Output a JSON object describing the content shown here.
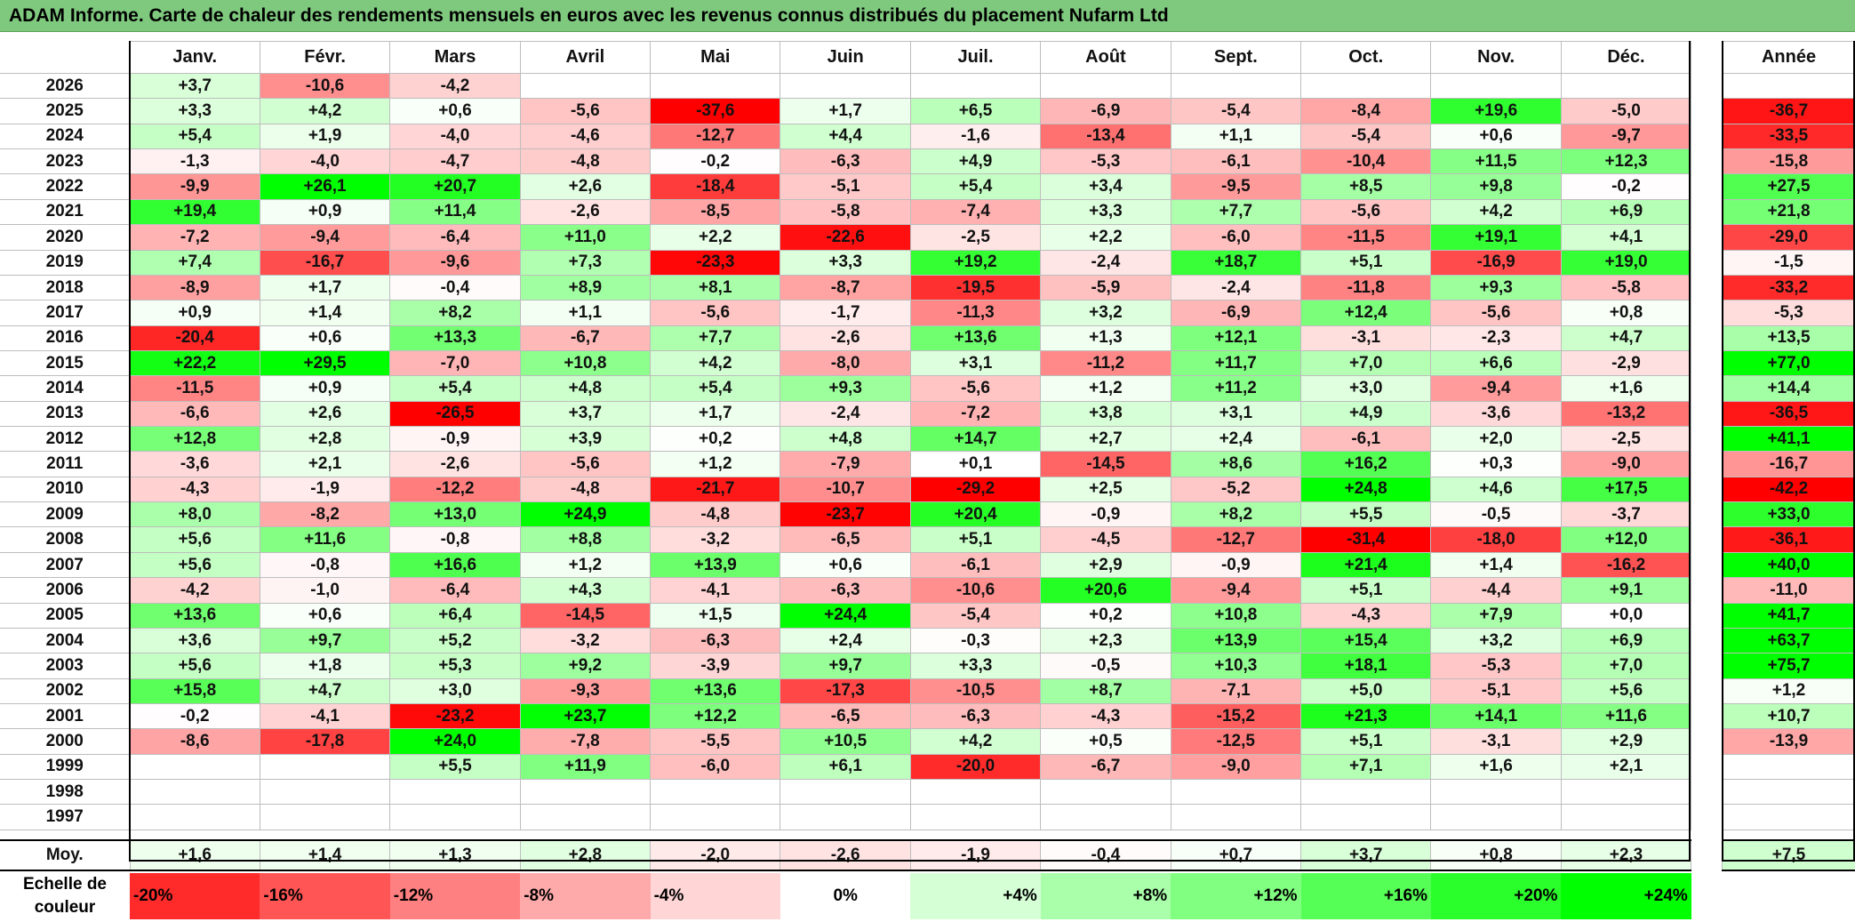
{
  "title": "ADAM Informe. Carte de chaleur des rendements mensuels en euros avec les revenus connus distribués du placement Nufarm Ltd",
  "colors": {
    "neg_max": "#ff0000",
    "zero": "#ffffff",
    "pos_max": "#00ff00",
    "title_bg": "#7fc97f"
  },
  "chart_data": {
    "type": "heatmap",
    "title": "ADAM Informe. Carte de chaleur des rendements mensuels en euros avec les revenus connus distribués du placement Nufarm Ltd",
    "columns": [
      "Janv.",
      "Févr.",
      "Mars",
      "Avril",
      "Mai",
      "Juin",
      "Juil.",
      "Août",
      "Sept.",
      "Oct.",
      "Nov.",
      "Déc."
    ],
    "year_header": "Année",
    "rows": [
      {
        "year": "2026",
        "values": [
          "+3,7",
          "-10,6",
          "-4,2",
          "",
          "",
          "",
          "",
          "",
          "",
          "",
          "",
          ""
        ],
        "annual": ""
      },
      {
        "year": "2025",
        "values": [
          "+3,3",
          "+4,2",
          "+0,6",
          "-5,6",
          "-37,6",
          "+1,7",
          "+6,5",
          "-6,9",
          "-5,4",
          "-8,4",
          "+19,6",
          "-5,0"
        ],
        "annual": "-36,7"
      },
      {
        "year": "2024",
        "values": [
          "+5,4",
          "+1,9",
          "-4,0",
          "-4,6",
          "-12,7",
          "+4,4",
          "-1,6",
          "-13,4",
          "+1,1",
          "-5,4",
          "+0,6",
          "-9,7"
        ],
        "annual": "-33,5"
      },
      {
        "year": "2023",
        "values": [
          "-1,3",
          "-4,0",
          "-4,7",
          "-4,8",
          "-0,2",
          "-6,3",
          "+4,9",
          "-5,3",
          "-6,1",
          "-10,4",
          "+11,5",
          "+12,3"
        ],
        "annual": "-15,8"
      },
      {
        "year": "2022",
        "values": [
          "-9,9",
          "+26,1",
          "+20,7",
          "+2,6",
          "-18,4",
          "-5,1",
          "+5,4",
          "+3,4",
          "-9,5",
          "+8,5",
          "+9,8",
          "-0,2"
        ],
        "annual": "+27,5"
      },
      {
        "year": "2021",
        "values": [
          "+19,4",
          "+0,9",
          "+11,4",
          "-2,6",
          "-8,5",
          "-5,8",
          "-7,4",
          "+3,3",
          "+7,7",
          "-5,6",
          "+4,2",
          "+6,9"
        ],
        "annual": "+21,8"
      },
      {
        "year": "2020",
        "values": [
          "-7,2",
          "-9,4",
          "-6,4",
          "+11,0",
          "+2,2",
          "-22,6",
          "-2,5",
          "+2,2",
          "-6,0",
          "-11,5",
          "+19,1",
          "+4,1"
        ],
        "annual": "-29,0"
      },
      {
        "year": "2019",
        "values": [
          "+7,4",
          "-16,7",
          "-9,6",
          "+7,3",
          "-23,3",
          "+3,3",
          "+19,2",
          "-2,4",
          "+18,7",
          "+5,1",
          "-16,9",
          "+19,0"
        ],
        "annual": "-1,5"
      },
      {
        "year": "2018",
        "values": [
          "-8,9",
          "+1,7",
          "-0,4",
          "+8,9",
          "+8,1",
          "-8,7",
          "-19,5",
          "-5,9",
          "-2,4",
          "-11,8",
          "+9,3",
          "-5,8"
        ],
        "annual": "-33,2"
      },
      {
        "year": "2017",
        "values": [
          "+0,9",
          "+1,4",
          "+8,2",
          "+1,1",
          "-5,6",
          "-1,7",
          "-11,3",
          "+3,2",
          "-6,9",
          "+12,4",
          "-5,6",
          "+0,8"
        ],
        "annual": "-5,3"
      },
      {
        "year": "2016",
        "values": [
          "-20,4",
          "+0,6",
          "+13,3",
          "-6,7",
          "+7,7",
          "-2,6",
          "+13,6",
          "+1,3",
          "+12,1",
          "-3,1",
          "-2,3",
          "+4,7"
        ],
        "annual": "+13,5"
      },
      {
        "year": "2015",
        "values": [
          "+22,2",
          "+29,5",
          "-7,0",
          "+10,8",
          "+4,2",
          "-8,0",
          "+3,1",
          "-11,2",
          "+11,7",
          "+7,0",
          "+6,6",
          "-2,9"
        ],
        "annual": "+77,0"
      },
      {
        "year": "2014",
        "values": [
          "-11,5",
          "+0,9",
          "+5,4",
          "+4,8",
          "+5,4",
          "+9,3",
          "-5,6",
          "+1,2",
          "+11,2",
          "+3,0",
          "-9,4",
          "+1,6"
        ],
        "annual": "+14,4"
      },
      {
        "year": "2013",
        "values": [
          "-6,6",
          "+2,6",
          "-26,5",
          "+3,7",
          "+1,7",
          "-2,4",
          "-7,2",
          "+3,8",
          "+3,1",
          "+4,9",
          "-3,6",
          "-13,2"
        ],
        "annual": "-36,5"
      },
      {
        "year": "2012",
        "values": [
          "+12,8",
          "+2,8",
          "-0,9",
          "+3,9",
          "+0,2",
          "+4,8",
          "+14,7",
          "+2,7",
          "+2,4",
          "-6,1",
          "+2,0",
          "-2,5"
        ],
        "annual": "+41,1"
      },
      {
        "year": "2011",
        "values": [
          "-3,6",
          "+2,1",
          "-2,6",
          "-5,6",
          "+1,2",
          "-7,9",
          "+0,1",
          "-14,5",
          "+8,6",
          "+16,2",
          "+0,3",
          "-9,0"
        ],
        "annual": "-16,7"
      },
      {
        "year": "2010",
        "values": [
          "-4,3",
          "-1,9",
          "-12,2",
          "-4,8",
          "-21,7",
          "-10,7",
          "-29,2",
          "+2,5",
          "-5,2",
          "+24,8",
          "+4,6",
          "+17,5"
        ],
        "annual": "-42,2"
      },
      {
        "year": "2009",
        "values": [
          "+8,0",
          "-8,2",
          "+13,0",
          "+24,9",
          "-4,8",
          "-23,7",
          "+20,4",
          "-0,9",
          "+8,2",
          "+5,5",
          "-0,5",
          "-3,7"
        ],
        "annual": "+33,0"
      },
      {
        "year": "2008",
        "values": [
          "+5,6",
          "+11,6",
          "-0,8",
          "+8,8",
          "-3,2",
          "-6,5",
          "+5,1",
          "-4,5",
          "-12,7",
          "-31,4",
          "-18,0",
          "+12,0"
        ],
        "annual": "-36,1"
      },
      {
        "year": "2007",
        "values": [
          "+5,6",
          "-0,8",
          "+16,6",
          "+1,2",
          "+13,9",
          "+0,6",
          "-6,1",
          "+2,9",
          "-0,9",
          "+21,4",
          "+1,4",
          "-16,2"
        ],
        "annual": "+40,0"
      },
      {
        "year": "2006",
        "values": [
          "-4,2",
          "-1,0",
          "-6,4",
          "+4,3",
          "-4,1",
          "-6,3",
          "-10,6",
          "+20,6",
          "-9,4",
          "+5,1",
          "-4,4",
          "+9,1"
        ],
        "annual": "-11,0"
      },
      {
        "year": "2005",
        "values": [
          "+13,6",
          "+0,6",
          "+6,4",
          "-14,5",
          "+1,5",
          "+24,4",
          "-5,4",
          "+0,2",
          "+10,8",
          "-4,3",
          "+7,9",
          "+0,0"
        ],
        "annual": "+41,7"
      },
      {
        "year": "2004",
        "values": [
          "+3,6",
          "+9,7",
          "+5,2",
          "-3,2",
          "-6,3",
          "+2,4",
          "-0,3",
          "+2,3",
          "+13,9",
          "+15,4",
          "+3,2",
          "+6,9"
        ],
        "annual": "+63,7"
      },
      {
        "year": "2003",
        "values": [
          "+5,6",
          "+1,8",
          "+5,3",
          "+9,2",
          "-3,9",
          "+9,7",
          "+3,3",
          "-0,5",
          "+10,3",
          "+18,1",
          "-5,3",
          "+7,0"
        ],
        "annual": "+75,7"
      },
      {
        "year": "2002",
        "values": [
          "+15,8",
          "+4,7",
          "+3,0",
          "-9,3",
          "+13,6",
          "-17,3",
          "-10,5",
          "+8,7",
          "-7,1",
          "+5,0",
          "-5,1",
          "+5,6"
        ],
        "annual": "+1,2"
      },
      {
        "year": "2001",
        "values": [
          "-0,2",
          "-4,1",
          "-23,2",
          "+23,7",
          "+12,2",
          "-6,5",
          "-6,3",
          "-4,3",
          "-15,2",
          "+21,3",
          "+14,1",
          "+11,6"
        ],
        "annual": "+10,7"
      },
      {
        "year": "2000",
        "values": [
          "-8,6",
          "-17,8",
          "+24,0",
          "-7,8",
          "-5,5",
          "+10,5",
          "+4,2",
          "+0,5",
          "-12,5",
          "+5,1",
          "-3,1",
          "+2,9"
        ],
        "annual": "-13,9"
      },
      {
        "year": "1999",
        "values": [
          "",
          "",
          "+5,5",
          "+11,9",
          "-6,0",
          "+6,1",
          "-20,0",
          "-6,7",
          "-9,0",
          "+7,1",
          "+1,6",
          "+2,1"
        ],
        "annual": ""
      },
      {
        "year": "1998",
        "values": [
          "",
          "",
          "",
          "",
          "",
          "",
          "",
          "",
          "",
          "",
          "",
          ""
        ],
        "annual": ""
      },
      {
        "year": "1997",
        "values": [
          "",
          "",
          "",
          "",
          "",
          "",
          "",
          "",
          "",
          "",
          "",
          ""
        ],
        "annual": ""
      }
    ],
    "average": {
      "label": "Moy.",
      "values": [
        "+1,6",
        "+1,4",
        "+1,3",
        "+2,8",
        "-2,0",
        "-2,6",
        "-1,9",
        "-0,4",
        "+0,7",
        "+3,7",
        "+0,8",
        "+2,3"
      ],
      "annual": "+7,5"
    },
    "scale": {
      "label": "Echelle de couleur",
      "steps": [
        {
          "text": "-20%",
          "v": -20
        },
        {
          "text": "-16%",
          "v": -16
        },
        {
          "text": "-12%",
          "v": -12
        },
        {
          "text": "-8%",
          "v": -8
        },
        {
          "text": "-4%",
          "v": -4
        },
        {
          "text": "0%",
          "v": 0
        },
        {
          "text": "+4%",
          "v": 4
        },
        {
          "text": "+8%",
          "v": 8
        },
        {
          "text": "+12%",
          "v": 12
        },
        {
          "text": "+16%",
          "v": 16
        },
        {
          "text": "+20%",
          "v": 20
        },
        {
          "text": "+24%",
          "v": 24
        }
      ]
    }
  }
}
